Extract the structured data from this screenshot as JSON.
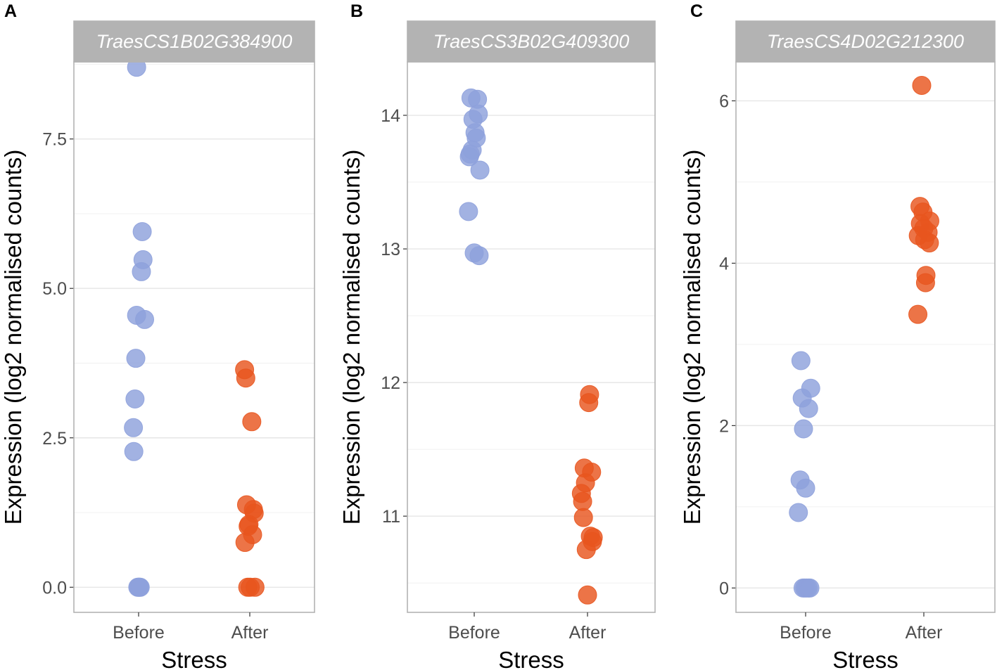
{
  "colors": {
    "before": "#8ea1dc",
    "after": "#e8551f",
    "strip_bg": "#b3b3b3",
    "grid": "#e6e6e6",
    "frame": "#b3b3b3"
  },
  "chart_data": [
    {
      "panel": "A",
      "type": "scatter",
      "title": "TraesCS1B02G384900",
      "xlabel": "Stress",
      "ylabel": "Expression (log2 normalised counts)",
      "categories": [
        "Before",
        "After"
      ],
      "ylim": [
        -0.42,
        8.79
      ],
      "yticks": [
        0.0,
        2.5,
        5.0,
        7.5
      ],
      "ytick_labels": [
        "0.0",
        "2.5",
        "5.0",
        "7.5"
      ],
      "series": [
        {
          "name": "Before",
          "points": [
            {
              "x": -0.05,
              "y": 8.7
            },
            {
              "x": 0.09,
              "y": 5.95
            },
            {
              "x": 0.11,
              "y": 5.48
            },
            {
              "x": 0.07,
              "y": 5.28
            },
            {
              "x": -0.05,
              "y": 4.55
            },
            {
              "x": 0.15,
              "y": 4.48
            },
            {
              "x": -0.07,
              "y": 3.83
            },
            {
              "x": -0.09,
              "y": 3.15
            },
            {
              "x": -0.13,
              "y": 2.67
            },
            {
              "x": -0.12,
              "y": 2.27
            },
            {
              "x": -0.02,
              "y": 0.0
            },
            {
              "x": 0.0,
              "y": 0.0
            },
            {
              "x": 0.02,
              "y": 0.0
            },
            {
              "x": 0.04,
              "y": 0.0
            }
          ]
        },
        {
          "name": "After",
          "points": [
            {
              "x": -0.13,
              "y": 3.64
            },
            {
              "x": -0.1,
              "y": 3.5
            },
            {
              "x": 0.05,
              "y": 2.77
            },
            {
              "x": -0.08,
              "y": 1.38
            },
            {
              "x": 0.09,
              "y": 1.3
            },
            {
              "x": 0.11,
              "y": 1.24
            },
            {
              "x": -0.02,
              "y": 1.05
            },
            {
              "x": -0.04,
              "y": 1.02
            },
            {
              "x": 0.07,
              "y": 0.88
            },
            {
              "x": -0.12,
              "y": 0.75
            },
            {
              "x": -0.05,
              "y": 0.0
            },
            {
              "x": 0.01,
              "y": 0.0
            },
            {
              "x": 0.13,
              "y": 0.0
            }
          ]
        }
      ]
    },
    {
      "panel": "B",
      "type": "scatter",
      "title": "TraesCS3B02G409300",
      "xlabel": "Stress",
      "ylabel": "Expression (log2 normalised counts)",
      "categories": [
        "Before",
        "After"
      ],
      "ylim": [
        10.28,
        14.4
      ],
      "yticks": [
        11,
        12,
        13,
        14
      ],
      "ytick_labels": [
        "11",
        "12",
        "13",
        "14"
      ],
      "series": [
        {
          "name": "Before",
          "points": [
            {
              "x": -0.08,
              "y": 14.13
            },
            {
              "x": 0.08,
              "y": 14.12
            },
            {
              "x": 0.1,
              "y": 14.01
            },
            {
              "x": -0.03,
              "y": 13.97
            },
            {
              "x": 0.02,
              "y": 13.87
            },
            {
              "x": 0.05,
              "y": 13.83
            },
            {
              "x": -0.05,
              "y": 13.74
            },
            {
              "x": -0.12,
              "y": 13.69
            },
            {
              "x": -0.1,
              "y": 13.71
            },
            {
              "x": 0.14,
              "y": 13.59
            },
            {
              "x": -0.14,
              "y": 13.28
            },
            {
              "x": 0.0,
              "y": 12.97
            },
            {
              "x": 0.12,
              "y": 12.95
            }
          ]
        },
        {
          "name": "After",
          "points": [
            {
              "x": 0.05,
              "y": 11.91
            },
            {
              "x": 0.03,
              "y": 11.85
            },
            {
              "x": -0.08,
              "y": 11.36
            },
            {
              "x": 0.1,
              "y": 11.33
            },
            {
              "x": -0.05,
              "y": 11.25
            },
            {
              "x": -0.15,
              "y": 11.17
            },
            {
              "x": -0.12,
              "y": 11.11
            },
            {
              "x": -0.1,
              "y": 10.99
            },
            {
              "x": 0.07,
              "y": 10.85
            },
            {
              "x": 0.14,
              "y": 10.84
            },
            {
              "x": 0.12,
              "y": 10.81
            },
            {
              "x": -0.03,
              "y": 10.75
            },
            {
              "x": 0.0,
              "y": 10.41
            }
          ]
        }
      ]
    },
    {
      "panel": "C",
      "type": "scatter",
      "title": "TraesCS4D02G212300",
      "xlabel": "Stress",
      "ylabel": "Expression (log2 normalised counts)",
      "categories": [
        "Before",
        "After"
      ],
      "ylim": [
        -0.3,
        6.48
      ],
      "yticks": [
        0,
        2,
        4,
        6
      ],
      "ytick_labels": [
        "0",
        "2",
        "4",
        "6"
      ],
      "series": [
        {
          "name": "Before",
          "points": [
            {
              "x": -0.11,
              "y": 2.8
            },
            {
              "x": 0.12,
              "y": 2.46
            },
            {
              "x": -0.08,
              "y": 2.34
            },
            {
              "x": 0.07,
              "y": 2.21
            },
            {
              "x": -0.05,
              "y": 1.96
            },
            {
              "x": -0.13,
              "y": 1.33
            },
            {
              "x": 0.0,
              "y": 1.23
            },
            {
              "x": -0.17,
              "y": 0.93
            },
            {
              "x": -0.06,
              "y": 0.0
            },
            {
              "x": -0.02,
              "y": 0.0
            },
            {
              "x": 0.02,
              "y": 0.0
            },
            {
              "x": 0.06,
              "y": 0.0
            },
            {
              "x": 0.1,
              "y": 0.0
            }
          ]
        },
        {
          "name": "After",
          "points": [
            {
              "x": -0.05,
              "y": 6.19
            },
            {
              "x": -0.09,
              "y": 4.7
            },
            {
              "x": -0.02,
              "y": 4.63
            },
            {
              "x": 0.14,
              "y": 4.52
            },
            {
              "x": -0.08,
              "y": 4.49
            },
            {
              "x": 0.0,
              "y": 4.43
            },
            {
              "x": 0.1,
              "y": 4.38
            },
            {
              "x": -0.13,
              "y": 4.34
            },
            {
              "x": 0.02,
              "y": 4.29
            },
            {
              "x": 0.13,
              "y": 4.25
            },
            {
              "x": 0.05,
              "y": 3.85
            },
            {
              "x": 0.04,
              "y": 3.76
            },
            {
              "x": -0.14,
              "y": 3.37
            }
          ]
        }
      ]
    }
  ]
}
